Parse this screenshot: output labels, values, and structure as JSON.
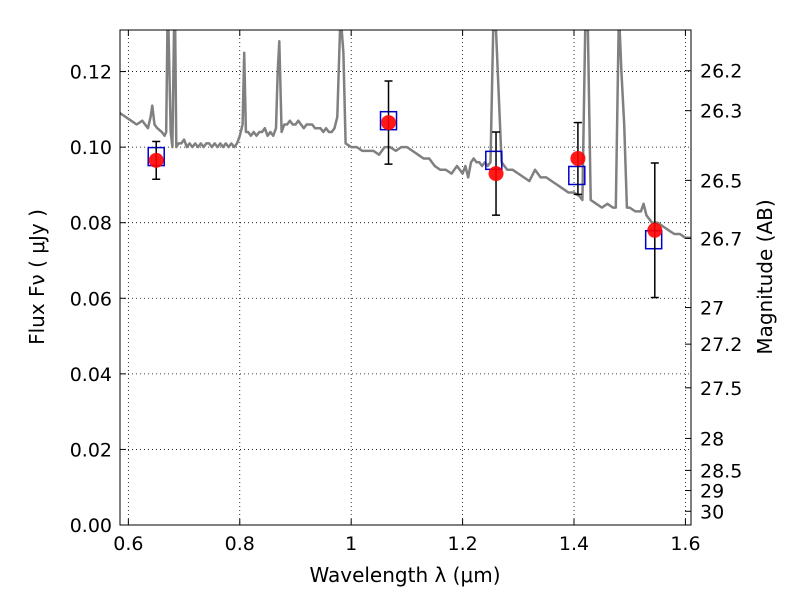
{
  "chart_data": {
    "type": "scatter",
    "title": "",
    "xlabel": "Wavelength  λ (μm)",
    "ylabel": "Flux  Fν  ( μJy )",
    "ylabel_right": "Magnitude (AB)",
    "xlim": [
      0.585,
      1.61
    ],
    "ylim": [
      0.0,
      0.131
    ],
    "grid": true,
    "x_ticks": [
      0.6,
      0.8,
      1.0,
      1.2,
      1.4,
      1.6
    ],
    "x_tick_labels": [
      "0.6",
      "0.8",
      "1",
      "1.2",
      "1.4",
      "1.6"
    ],
    "y_ticks": [
      0.0,
      0.02,
      0.04,
      0.06,
      0.08,
      0.1,
      0.12
    ],
    "y_tick_labels": [
      "0.00",
      "0.02",
      "0.04",
      "0.06",
      "0.08",
      "0.10",
      "0.12"
    ],
    "magnitude_ticks": [
      26.2,
      26.3,
      26.5,
      26.7,
      27,
      27.2,
      27.5,
      28,
      28.5,
      29,
      30
    ],
    "magnitude_tick_labels": [
      "26.2",
      "26.3",
      "26.5",
      "26.7",
      "27",
      "27.2",
      "27.5",
      "28",
      "28.5",
      "29",
      "30"
    ],
    "colors": {
      "spectrum": "#808080",
      "model": "#0000cc",
      "observed": "#ff0000",
      "errorbar": "#000000"
    },
    "series": [
      {
        "marker": "line",
        "x": [
          0.585,
          0.595,
          0.605,
          0.615,
          0.625,
          0.63,
          0.635,
          0.64,
          0.643,
          0.647,
          0.652,
          0.66,
          0.665,
          0.668,
          0.67,
          0.672,
          0.676,
          0.679,
          0.682,
          0.684,
          0.686,
          0.69,
          0.695,
          0.7,
          0.705,
          0.71,
          0.715,
          0.72,
          0.725,
          0.73,
          0.735,
          0.74,
          0.745,
          0.75,
          0.755,
          0.76,
          0.765,
          0.77,
          0.775,
          0.78,
          0.785,
          0.79,
          0.795,
          0.8,
          0.805,
          0.808,
          0.811,
          0.815,
          0.82,
          0.825,
          0.83,
          0.835,
          0.84,
          0.845,
          0.85,
          0.855,
          0.86,
          0.865,
          0.868,
          0.871,
          0.875,
          0.88,
          0.885,
          0.89,
          0.895,
          0.9,
          0.905,
          0.91,
          0.915,
          0.92,
          0.925,
          0.93,
          0.935,
          0.94,
          0.945,
          0.95,
          0.955,
          0.96,
          0.965,
          0.97,
          0.975,
          0.98,
          0.983,
          0.986,
          0.99,
          1.0,
          1.01,
          1.02,
          1.03,
          1.04,
          1.05,
          1.06,
          1.07,
          1.08,
          1.09,
          1.1,
          1.11,
          1.12,
          1.13,
          1.14,
          1.15,
          1.16,
          1.17,
          1.18,
          1.185,
          1.19,
          1.195,
          1.2,
          1.205,
          1.21,
          1.215,
          1.22,
          1.225,
          1.23,
          1.235,
          1.24,
          1.245,
          1.25,
          1.255,
          1.26,
          1.27,
          1.28,
          1.29,
          1.3,
          1.31,
          1.32,
          1.33,
          1.34,
          1.35,
          1.36,
          1.37,
          1.38,
          1.39,
          1.4,
          1.41,
          1.415,
          1.42,
          1.425,
          1.43,
          1.44,
          1.45,
          1.46,
          1.47,
          1.475,
          1.48,
          1.482,
          1.485,
          1.49,
          1.495,
          1.5,
          1.51,
          1.52,
          1.525,
          1.53,
          1.54,
          1.55,
          1.56,
          1.57,
          1.58,
          1.59,
          1.6,
          1.61
        ],
        "y": [
          0.109,
          0.108,
          0.107,
          0.106,
          0.107,
          0.106,
          0.105,
          0.108,
          0.111,
          0.106,
          0.105,
          0.104,
          0.103,
          0.104,
          0.131,
          0.131,
          0.104,
          0.1,
          0.131,
          0.131,
          0.1,
          0.101,
          0.101,
          0.102,
          0.1,
          0.101,
          0.1,
          0.101,
          0.1,
          0.101,
          0.1,
          0.101,
          0.101,
          0.1,
          0.101,
          0.1,
          0.101,
          0.1,
          0.101,
          0.1,
          0.101,
          0.1,
          0.101,
          0.103,
          0.106,
          0.125,
          0.104,
          0.104,
          0.103,
          0.104,
          0.103,
          0.104,
          0.104,
          0.105,
          0.103,
          0.104,
          0.103,
          0.105,
          0.12,
          0.128,
          0.104,
          0.106,
          0.106,
          0.107,
          0.106,
          0.106,
          0.107,
          0.106,
          0.105,
          0.106,
          0.106,
          0.106,
          0.105,
          0.105,
          0.105,
          0.104,
          0.105,
          0.104,
          0.104,
          0.105,
          0.108,
          0.131,
          0.131,
          0.125,
          0.101,
          0.1,
          0.1,
          0.099,
          0.099,
          0.099,
          0.098,
          0.1,
          0.1,
          0.099,
          0.1,
          0.1,
          0.099,
          0.098,
          0.097,
          0.097,
          0.095,
          0.094,
          0.094,
          0.093,
          0.094,
          0.095,
          0.094,
          0.093,
          0.095,
          0.092,
          0.096,
          0.097,
          0.096,
          0.096,
          0.095,
          0.096,
          0.095,
          0.096,
          0.131,
          0.131,
          0.096,
          0.094,
          0.094,
          0.093,
          0.092,
          0.091,
          0.094,
          0.092,
          0.092,
          0.091,
          0.09,
          0.089,
          0.088,
          0.088,
          0.087,
          0.086,
          0.131,
          0.131,
          0.086,
          0.085,
          0.084,
          0.085,
          0.084,
          0.084,
          0.131,
          0.131,
          0.12,
          0.106,
          0.084,
          0.084,
          0.083,
          0.083,
          0.085,
          0.082,
          0.08,
          0.08,
          0.079,
          0.078,
          0.077,
          0.077,
          0.076,
          0.076
        ]
      },
      {
        "marker": "open-square",
        "x": [
          0.65,
          1.067,
          1.256,
          1.405,
          1.543
        ],
        "y": [
          0.0975,
          0.107,
          0.0965,
          0.0925,
          0.0755
        ]
      },
      {
        "marker": "filled-circle",
        "x": [
          0.65,
          1.067,
          1.26,
          1.407,
          1.545
        ],
        "y": [
          0.0965,
          0.1065,
          0.093,
          0.097,
          0.078
        ],
        "yerr": [
          0.005,
          0.011,
          0.011,
          0.0095,
          0.0178
        ]
      }
    ]
  }
}
